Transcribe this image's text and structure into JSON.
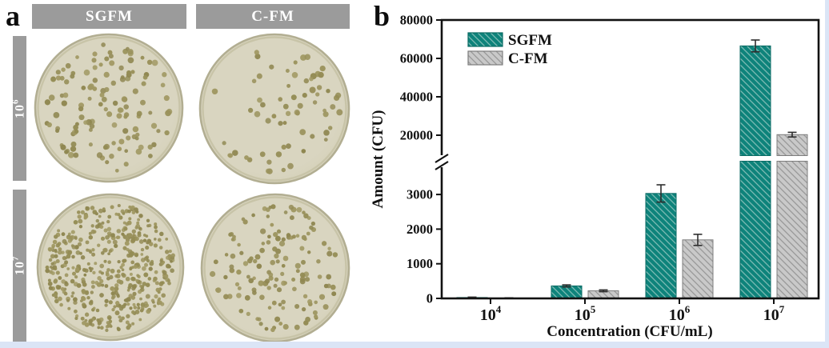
{
  "page": {
    "background": "#ffffff",
    "border_color": "#dbe5f6"
  },
  "panel_a": {
    "label": "a",
    "header_bg": "#9b9b9b",
    "column_headers": [
      {
        "label": "SGFM"
      },
      {
        "label": "C-FM"
      }
    ],
    "row_labels": [
      {
        "base": "10",
        "exp": "6"
      },
      {
        "base": "10",
        "exp": "7"
      }
    ],
    "dishes": [
      {
        "column": "SGFM",
        "row": "10^6",
        "colony_count": 132,
        "colony_radius": 3.1
      },
      {
        "column": "C-FM",
        "row": "10^6",
        "colony_count": 66,
        "colony_radius": 3.2
      },
      {
        "column": "SGFM",
        "row": "10^7",
        "colony_count": 500,
        "colony_radius": 2.4
      },
      {
        "column": "C-FM",
        "row": "10^7",
        "colony_count": 150,
        "colony_radius": 2.9
      }
    ],
    "colors": {
      "agar": "#d9d5c0",
      "agar_edge": "#d3cfb6",
      "rim": "#b2ae92",
      "ring": "#c8c4a8",
      "colony": "#98905a"
    }
  },
  "panel_b_label": "b",
  "chart_data": {
    "type": "bar",
    "title": "",
    "xlabel": "Concentration (CFU/mL)",
    "ylabel": "Amount (CFU)",
    "categories": [
      {
        "base": "10",
        "exp": "4"
      },
      {
        "base": "10",
        "exp": "5"
      },
      {
        "base": "10",
        "exp": "6"
      },
      {
        "base": "10",
        "exp": "7"
      }
    ],
    "series": [
      {
        "name": "SGFM",
        "fill": "#0e837b",
        "hatch": "#7fbcb5",
        "edge": "#0a6a63",
        "values": [
          25,
          360,
          3030,
          66500
        ],
        "errors": [
          12,
          30,
          250,
          3100
        ]
      },
      {
        "name": "C-FM",
        "fill": "#c9c9c9",
        "hatch": "#989898",
        "edge": "#7d7d7d",
        "values": [
          10,
          220,
          1690,
          20300
        ],
        "errors": [
          6,
          25,
          160,
          1200
        ]
      }
    ],
    "y_axis": {
      "broken": true,
      "lower_ticks": [
        0,
        1000,
        2000,
        3000
      ],
      "upper_ticks": [
        20000,
        40000,
        60000,
        80000
      ],
      "lower_range": [
        0,
        3800
      ],
      "upper_range": [
        10000,
        80000
      ]
    },
    "legend": {
      "position": "top-left",
      "entries": [
        "SGFM",
        "C-FM"
      ]
    },
    "grid": false,
    "frame": true,
    "error_bar_color": "#2e2e2e",
    "axis_color": "#111111"
  }
}
